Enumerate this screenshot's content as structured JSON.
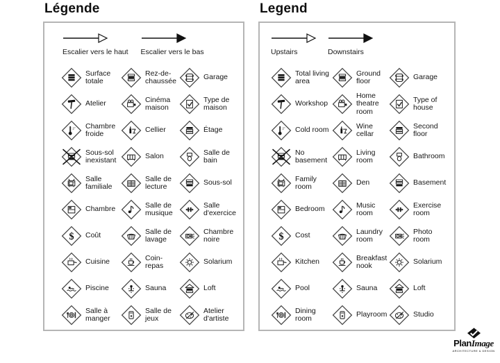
{
  "colors": {
    "ink": "#161616",
    "panel_border": "#b5b5b5",
    "icon_stroke": "#2e2e2e",
    "icon_fill": "#141414"
  },
  "panels": [
    {
      "id": "fr",
      "title": "Légende",
      "arrows": [
        {
          "label": "Escalier vers le haut",
          "style": "open",
          "icon": "stairs-up-arrow-icon"
        },
        {
          "label": "Escalier vers le bas",
          "style": "solid",
          "icon": "stairs-down-arrow-icon"
        }
      ],
      "items": [
        {
          "label": "Surface totale",
          "icon": "total-area"
        },
        {
          "label": "Rez-de-chaussée",
          "icon": "ground-floor"
        },
        {
          "label": "Garage",
          "icon": "garage"
        },
        {
          "label": "Atelier",
          "icon": "workshop"
        },
        {
          "label": "Cinéma maison",
          "icon": "home-theatre"
        },
        {
          "label": "Type de maison",
          "icon": "house-check"
        },
        {
          "label": "Chambre froide",
          "icon": "cold-room"
        },
        {
          "label": "Cellier",
          "icon": "wine-cellar"
        },
        {
          "label": "Étage",
          "icon": "second-floor"
        },
        {
          "label": "Sous-sol inexistant",
          "icon": "no-basement"
        },
        {
          "label": "Salon",
          "icon": "living-room"
        },
        {
          "label": "Salle de bain",
          "icon": "bathroom"
        },
        {
          "label": "Salle familiale",
          "icon": "family-room"
        },
        {
          "label": "Salle de lecture",
          "icon": "den"
        },
        {
          "label": "Sous-sol",
          "icon": "basement"
        },
        {
          "label": "Chambre",
          "icon": "bedroom"
        },
        {
          "label": "Salle de musique",
          "icon": "music-room"
        },
        {
          "label": "Salle d'exercice",
          "icon": "exercise-room"
        },
        {
          "label": "Coût",
          "icon": "cost"
        },
        {
          "label": "Salle de lavage",
          "icon": "laundry-room"
        },
        {
          "label": "Chambre noire",
          "icon": "photo-room"
        },
        {
          "label": "Cuisine",
          "icon": "kitchen"
        },
        {
          "label": "Coin-repas",
          "icon": "breakfast-nook"
        },
        {
          "label": "Solarium",
          "icon": "solarium"
        },
        {
          "label": "Piscine",
          "icon": "pool"
        },
        {
          "label": "Sauna",
          "icon": "sauna"
        },
        {
          "label": "Loft",
          "icon": "loft"
        },
        {
          "label": "Salle à manger",
          "icon": "dining-room"
        },
        {
          "label": "Salle de jeux",
          "icon": "playroom"
        },
        {
          "label": "Atelier d'artiste",
          "icon": "studio"
        }
      ]
    },
    {
      "id": "en",
      "title": "Legend",
      "arrows": [
        {
          "label": "Upstairs",
          "style": "open",
          "icon": "stairs-up-arrow-icon"
        },
        {
          "label": "Downstairs",
          "style": "solid",
          "icon": "stairs-down-arrow-icon"
        }
      ],
      "items": [
        {
          "label": "Total living area",
          "icon": "total-area"
        },
        {
          "label": "Ground floor",
          "icon": "ground-floor"
        },
        {
          "label": "Garage",
          "icon": "garage"
        },
        {
          "label": "Workshop",
          "icon": "workshop"
        },
        {
          "label": "Home theatre room",
          "icon": "home-theatre"
        },
        {
          "label": "Type of house",
          "icon": "house-check"
        },
        {
          "label": "Cold room",
          "icon": "cold-room"
        },
        {
          "label": "Wine cellar",
          "icon": "wine-cellar"
        },
        {
          "label": "Second floor",
          "icon": "second-floor"
        },
        {
          "label": "No basement",
          "icon": "no-basement"
        },
        {
          "label": "Living room",
          "icon": "living-room"
        },
        {
          "label": "Bathroom",
          "icon": "bathroom"
        },
        {
          "label": "Family room",
          "icon": "family-room"
        },
        {
          "label": "Den",
          "icon": "den"
        },
        {
          "label": "Basement",
          "icon": "basement"
        },
        {
          "label": "Bedroom",
          "icon": "bedroom"
        },
        {
          "label": "Music room",
          "icon": "music-room"
        },
        {
          "label": "Exercise room",
          "icon": "exercise-room"
        },
        {
          "label": "Cost",
          "icon": "cost"
        },
        {
          "label": "Laundry room",
          "icon": "laundry-room"
        },
        {
          "label": "Photo room",
          "icon": "photo-room"
        },
        {
          "label": "Kitchen",
          "icon": "kitchen"
        },
        {
          "label": "Breakfast nook",
          "icon": "breakfast-nook"
        },
        {
          "label": "Solarium",
          "icon": "solarium"
        },
        {
          "label": "Pool",
          "icon": "pool"
        },
        {
          "label": "Sauna",
          "icon": "sauna"
        },
        {
          "label": "Loft",
          "icon": "loft"
        },
        {
          "label": "Dining room",
          "icon": "dining-room"
        },
        {
          "label": "Playroom",
          "icon": "playroom"
        },
        {
          "label": "Studio",
          "icon": "studio"
        }
      ]
    }
  ],
  "logo": {
    "name_bold": "Plan",
    "name_italic": "Image",
    "tagline": "ARCHITECTURE & DESIGN"
  }
}
